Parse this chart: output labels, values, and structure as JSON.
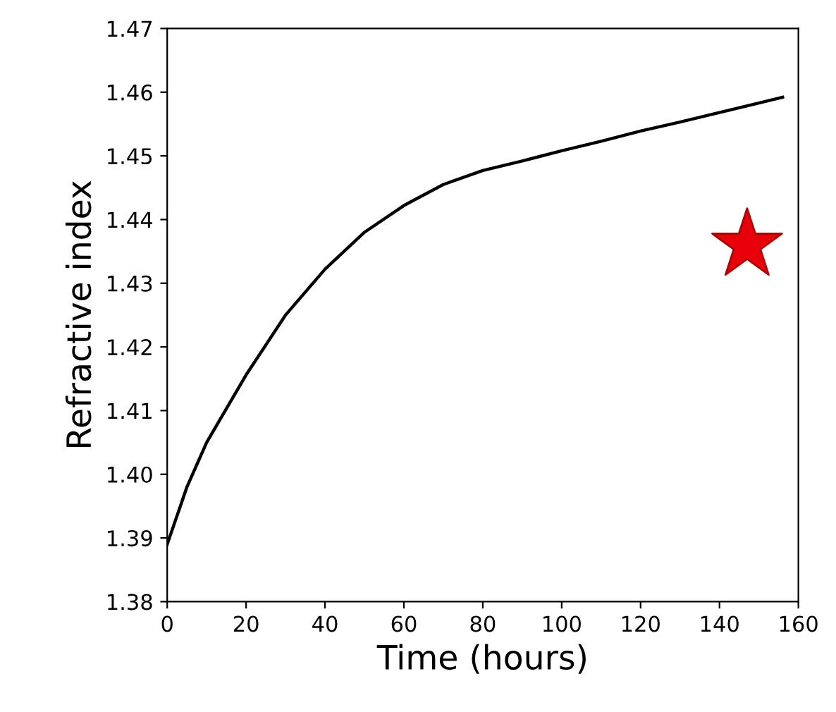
{
  "chart_data": {
    "type": "line",
    "xlabel": "Time (hours)",
    "ylabel": "Refractive index",
    "xlim": [
      0,
      160
    ],
    "ylim": [
      1.38,
      1.47
    ],
    "xticks": [
      0,
      20,
      40,
      60,
      80,
      100,
      120,
      140,
      160
    ],
    "yticks": [
      {
        "value": 1.38,
        "label": "1.38"
      },
      {
        "value": 1.39,
        "label": "1.39"
      },
      {
        "value": 1.4,
        "label": "1.40"
      },
      {
        "value": 1.41,
        "label": "1.41"
      },
      {
        "value": 1.42,
        "label": "1.42"
      },
      {
        "value": 1.43,
        "label": "1.43"
      },
      {
        "value": 1.44,
        "label": "1.44"
      },
      {
        "value": 1.45,
        "label": "1.45"
      },
      {
        "value": 1.46,
        "label": "1.46"
      },
      {
        "value": 1.47,
        "label": "1.47"
      }
    ],
    "grid": false,
    "legend": false,
    "series": [
      {
        "color": "#000000",
        "marker": "none",
        "x": [
          0,
          5,
          10,
          20,
          30,
          40,
          50,
          60,
          70,
          80,
          90,
          100,
          110,
          120,
          130,
          140,
          150,
          156
        ],
        "values": [
          1.389,
          1.398,
          1.405,
          1.4156,
          1.425,
          1.4322,
          1.438,
          1.4422,
          1.4455,
          1.4477,
          1.4492,
          1.4508,
          1.4523,
          1.4539,
          1.4553,
          1.4568,
          1.4583,
          1.4592
        ]
      },
      {
        "type": "scatter",
        "color": "#e8000b",
        "marker": "star",
        "x": [
          147
        ],
        "values": [
          1.436
        ]
      }
    ]
  }
}
